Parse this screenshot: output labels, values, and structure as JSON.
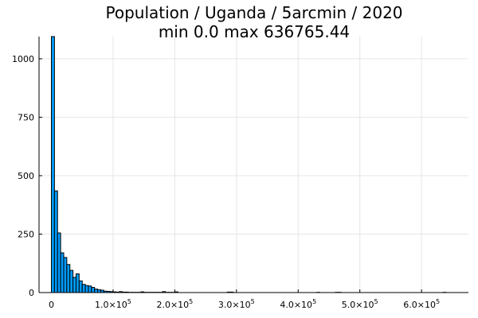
{
  "chart_data": {
    "type": "bar",
    "title_lines": [
      "Population / Uganda / 5arcmin / 2020",
      "min 0.0  max 636765.44"
    ],
    "xlabel": "",
    "ylabel": "",
    "bin_width": 5000,
    "x_range": [
      -20000,
      676000
    ],
    "ylim": [
      0,
      1095
    ],
    "x_ticks": [
      {
        "value": 0,
        "label": "0"
      },
      {
        "value": 100000,
        "label": "1.0×10",
        "exp": "5"
      },
      {
        "value": 200000,
        "label": "2.0×10",
        "exp": "5"
      },
      {
        "value": 300000,
        "label": "3.0×10",
        "exp": "5"
      },
      {
        "value": 400000,
        "label": "4.0×10",
        "exp": "5"
      },
      {
        "value": 500000,
        "label": "5.0×10",
        "exp": "5"
      },
      {
        "value": 600000,
        "label": "6.0×10",
        "exp": "5"
      }
    ],
    "y_ticks": [
      {
        "value": 0,
        "label": "0"
      },
      {
        "value": 250,
        "label": "250"
      },
      {
        "value": 500,
        "label": "500"
      },
      {
        "value": 750,
        "label": "750"
      },
      {
        "value": 1000,
        "label": "1000"
      }
    ],
    "grid": true,
    "bins_start": [
      0,
      5000,
      10000,
      15000,
      20000,
      25000,
      30000,
      35000,
      40000,
      45000,
      50000,
      55000,
      60000,
      65000,
      70000,
      75000,
      80000,
      85000,
      90000,
      95000,
      100000,
      105000,
      110000,
      115000,
      120000,
      125000,
      130000,
      135000,
      140000,
      145000,
      150000,
      155000,
      160000,
      165000,
      170000,
      175000,
      180000,
      185000,
      190000,
      195000,
      200000,
      285000,
      290000,
      430000,
      460000,
      465000,
      635000
    ],
    "values": [
      1095,
      435,
      255,
      170,
      150,
      120,
      95,
      65,
      80,
      50,
      35,
      30,
      28,
      22,
      15,
      12,
      10,
      6,
      5,
      4,
      3,
      2,
      4,
      2,
      2,
      1,
      1,
      1,
      1,
      3,
      1,
      1,
      1,
      1,
      1,
      1,
      4,
      1,
      1,
      1,
      3,
      2,
      2,
      1,
      1,
      1,
      1
    ],
    "bar_color": "#009AF9"
  }
}
